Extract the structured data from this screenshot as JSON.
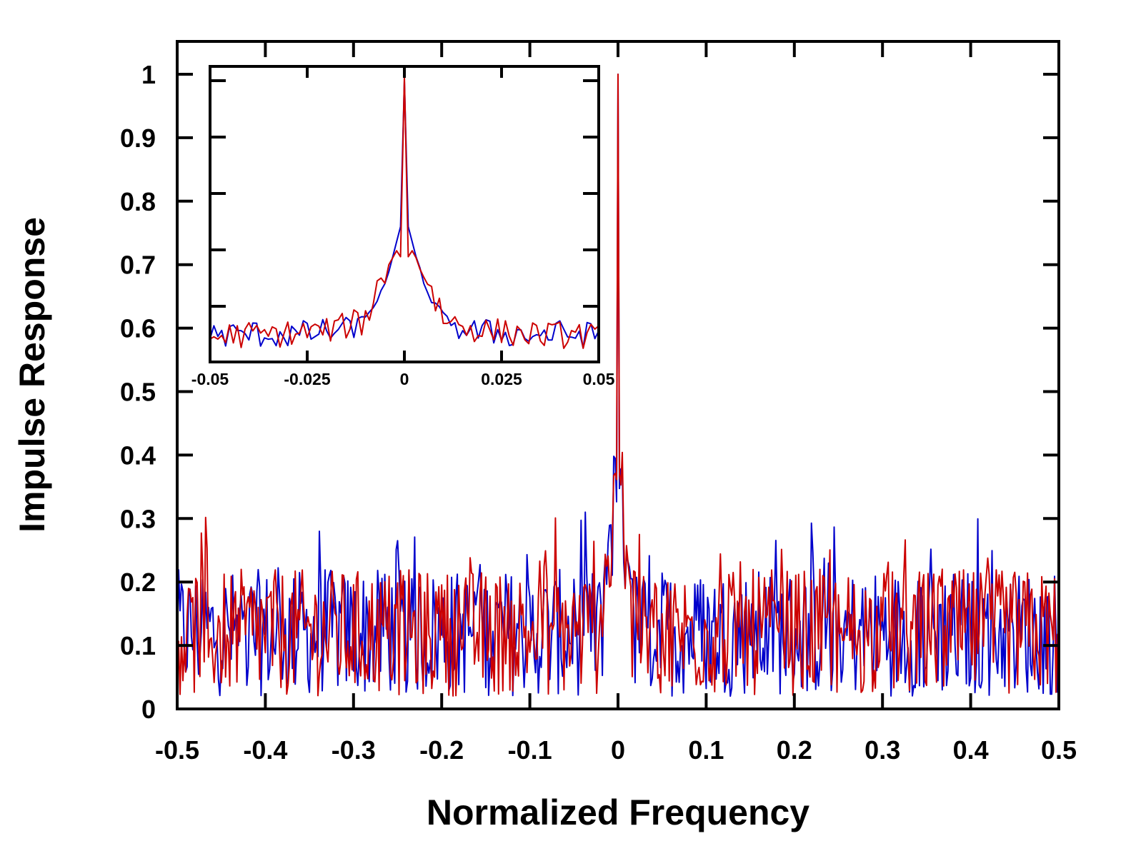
{
  "chart_data": [
    {
      "type": "line",
      "role": "main",
      "title": "",
      "xlabel": "Normalized Frequency",
      "ylabel": "Impulse Response",
      "xlim": [
        -0.5,
        0.5
      ],
      "ylim": [
        0,
        1.0
      ],
      "xticks": [
        -0.5,
        -0.4,
        -0.3,
        -0.2,
        -0.1,
        0,
        0.1,
        0.2,
        0.3,
        0.4,
        0.5
      ],
      "xtick_labels": [
        "-0.5",
        "-0.4",
        "-0.3",
        "-0.2",
        "-0.1",
        "0",
        "0.1",
        "0.2",
        "0.3",
        "0.4",
        "0.5"
      ],
      "yticks": [
        0,
        0.1,
        0.2,
        0.3,
        0.4,
        0.5,
        0.6,
        0.7,
        0.8,
        0.9,
        1
      ],
      "ytick_labels": [
        "0",
        "0.1",
        "0.2",
        "0.3",
        "0.4",
        "0.5",
        "0.6",
        "0.7",
        "0.8",
        "0.9",
        "1"
      ],
      "grid": false,
      "legend": "none",
      "series": [
        {
          "color": "#0000cc",
          "peak": {
            "x": 0,
            "y": 1.0
          },
          "noise_floor_mean": 0.12,
          "noise_floor_max": 0.31
        },
        {
          "color": "#cc0000",
          "peak": {
            "x": 0,
            "y": 1.0
          },
          "noise_floor_mean": 0.12,
          "noise_floor_max": 0.34
        }
      ]
    },
    {
      "type": "line",
      "role": "inset",
      "title": "",
      "xlim": [
        -0.05,
        0.05
      ],
      "xticks": [
        -0.05,
        -0.025,
        0,
        0.025,
        0.05
      ],
      "xtick_labels": [
        "-0.05",
        "-0.025",
        "0",
        "0.025",
        "0.05"
      ],
      "grid": false,
      "legend": "none",
      "series": [
        {
          "color": "#0000cc",
          "x": [
            -0.05,
            -0.045,
            -0.04,
            -0.035,
            -0.03,
            -0.025,
            -0.02,
            -0.015,
            -0.01,
            -0.005,
            -0.002,
            -0.001,
            0,
            0.001,
            0.002,
            0.005,
            0.01,
            0.015,
            0.02,
            0.025,
            0.03,
            0.035,
            0.04,
            0.045,
            0.05
          ],
          "y": [
            0.14,
            0.14,
            0.145,
            0.14,
            0.14,
            0.145,
            0.15,
            0.155,
            0.2,
            0.3,
            0.45,
            0.5,
            0.985,
            0.5,
            0.45,
            0.3,
            0.2,
            0.155,
            0.15,
            0.145,
            0.14,
            0.14,
            0.145,
            0.14,
            0.14
          ]
        },
        {
          "color": "#cc0000",
          "x": [
            -0.05,
            -0.045,
            -0.04,
            -0.035,
            -0.03,
            -0.025,
            -0.02,
            -0.015,
            -0.01,
            -0.005,
            -0.002,
            -0.001,
            0,
            0.001,
            0.002,
            0.005,
            0.01,
            0.015,
            0.02,
            0.025,
            0.03,
            0.035,
            0.04,
            0.045,
            0.05
          ],
          "y": [
            0.13,
            0.14,
            0.14,
            0.14,
            0.145,
            0.15,
            0.155,
            0.17,
            0.2,
            0.35,
            0.42,
            0.4,
            1.0,
            0.4,
            0.42,
            0.35,
            0.2,
            0.17,
            0.155,
            0.15,
            0.145,
            0.14,
            0.14,
            0.14,
            0.13
          ]
        }
      ]
    }
  ]
}
